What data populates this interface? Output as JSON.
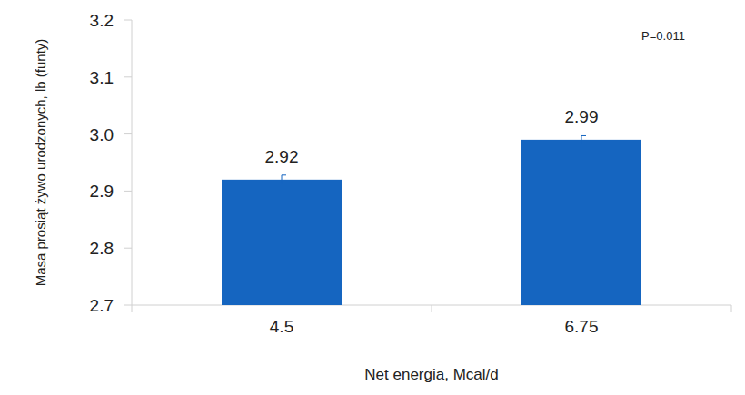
{
  "chart_data": {
    "type": "bar",
    "x_label": "Net energia, Mcal/d",
    "y_label": "Masa prosiąt żywo urodzonych, lb (funty)",
    "annotations": [
      "P=0.011"
    ],
    "categories": [
      "4.5",
      "6.75"
    ],
    "values": [
      2.92,
      2.99
    ],
    "errors": [
      0.008,
      0.007
    ],
    "color": "#1565c0",
    "data_labels": true,
    "grid": false,
    "ylim": [
      2.7,
      3.2
    ],
    "yticks": [
      2.7,
      2.8,
      2.9,
      {
        "value": 3,
        "label": "3.0"
      },
      3.1,
      3.2
    ]
  }
}
